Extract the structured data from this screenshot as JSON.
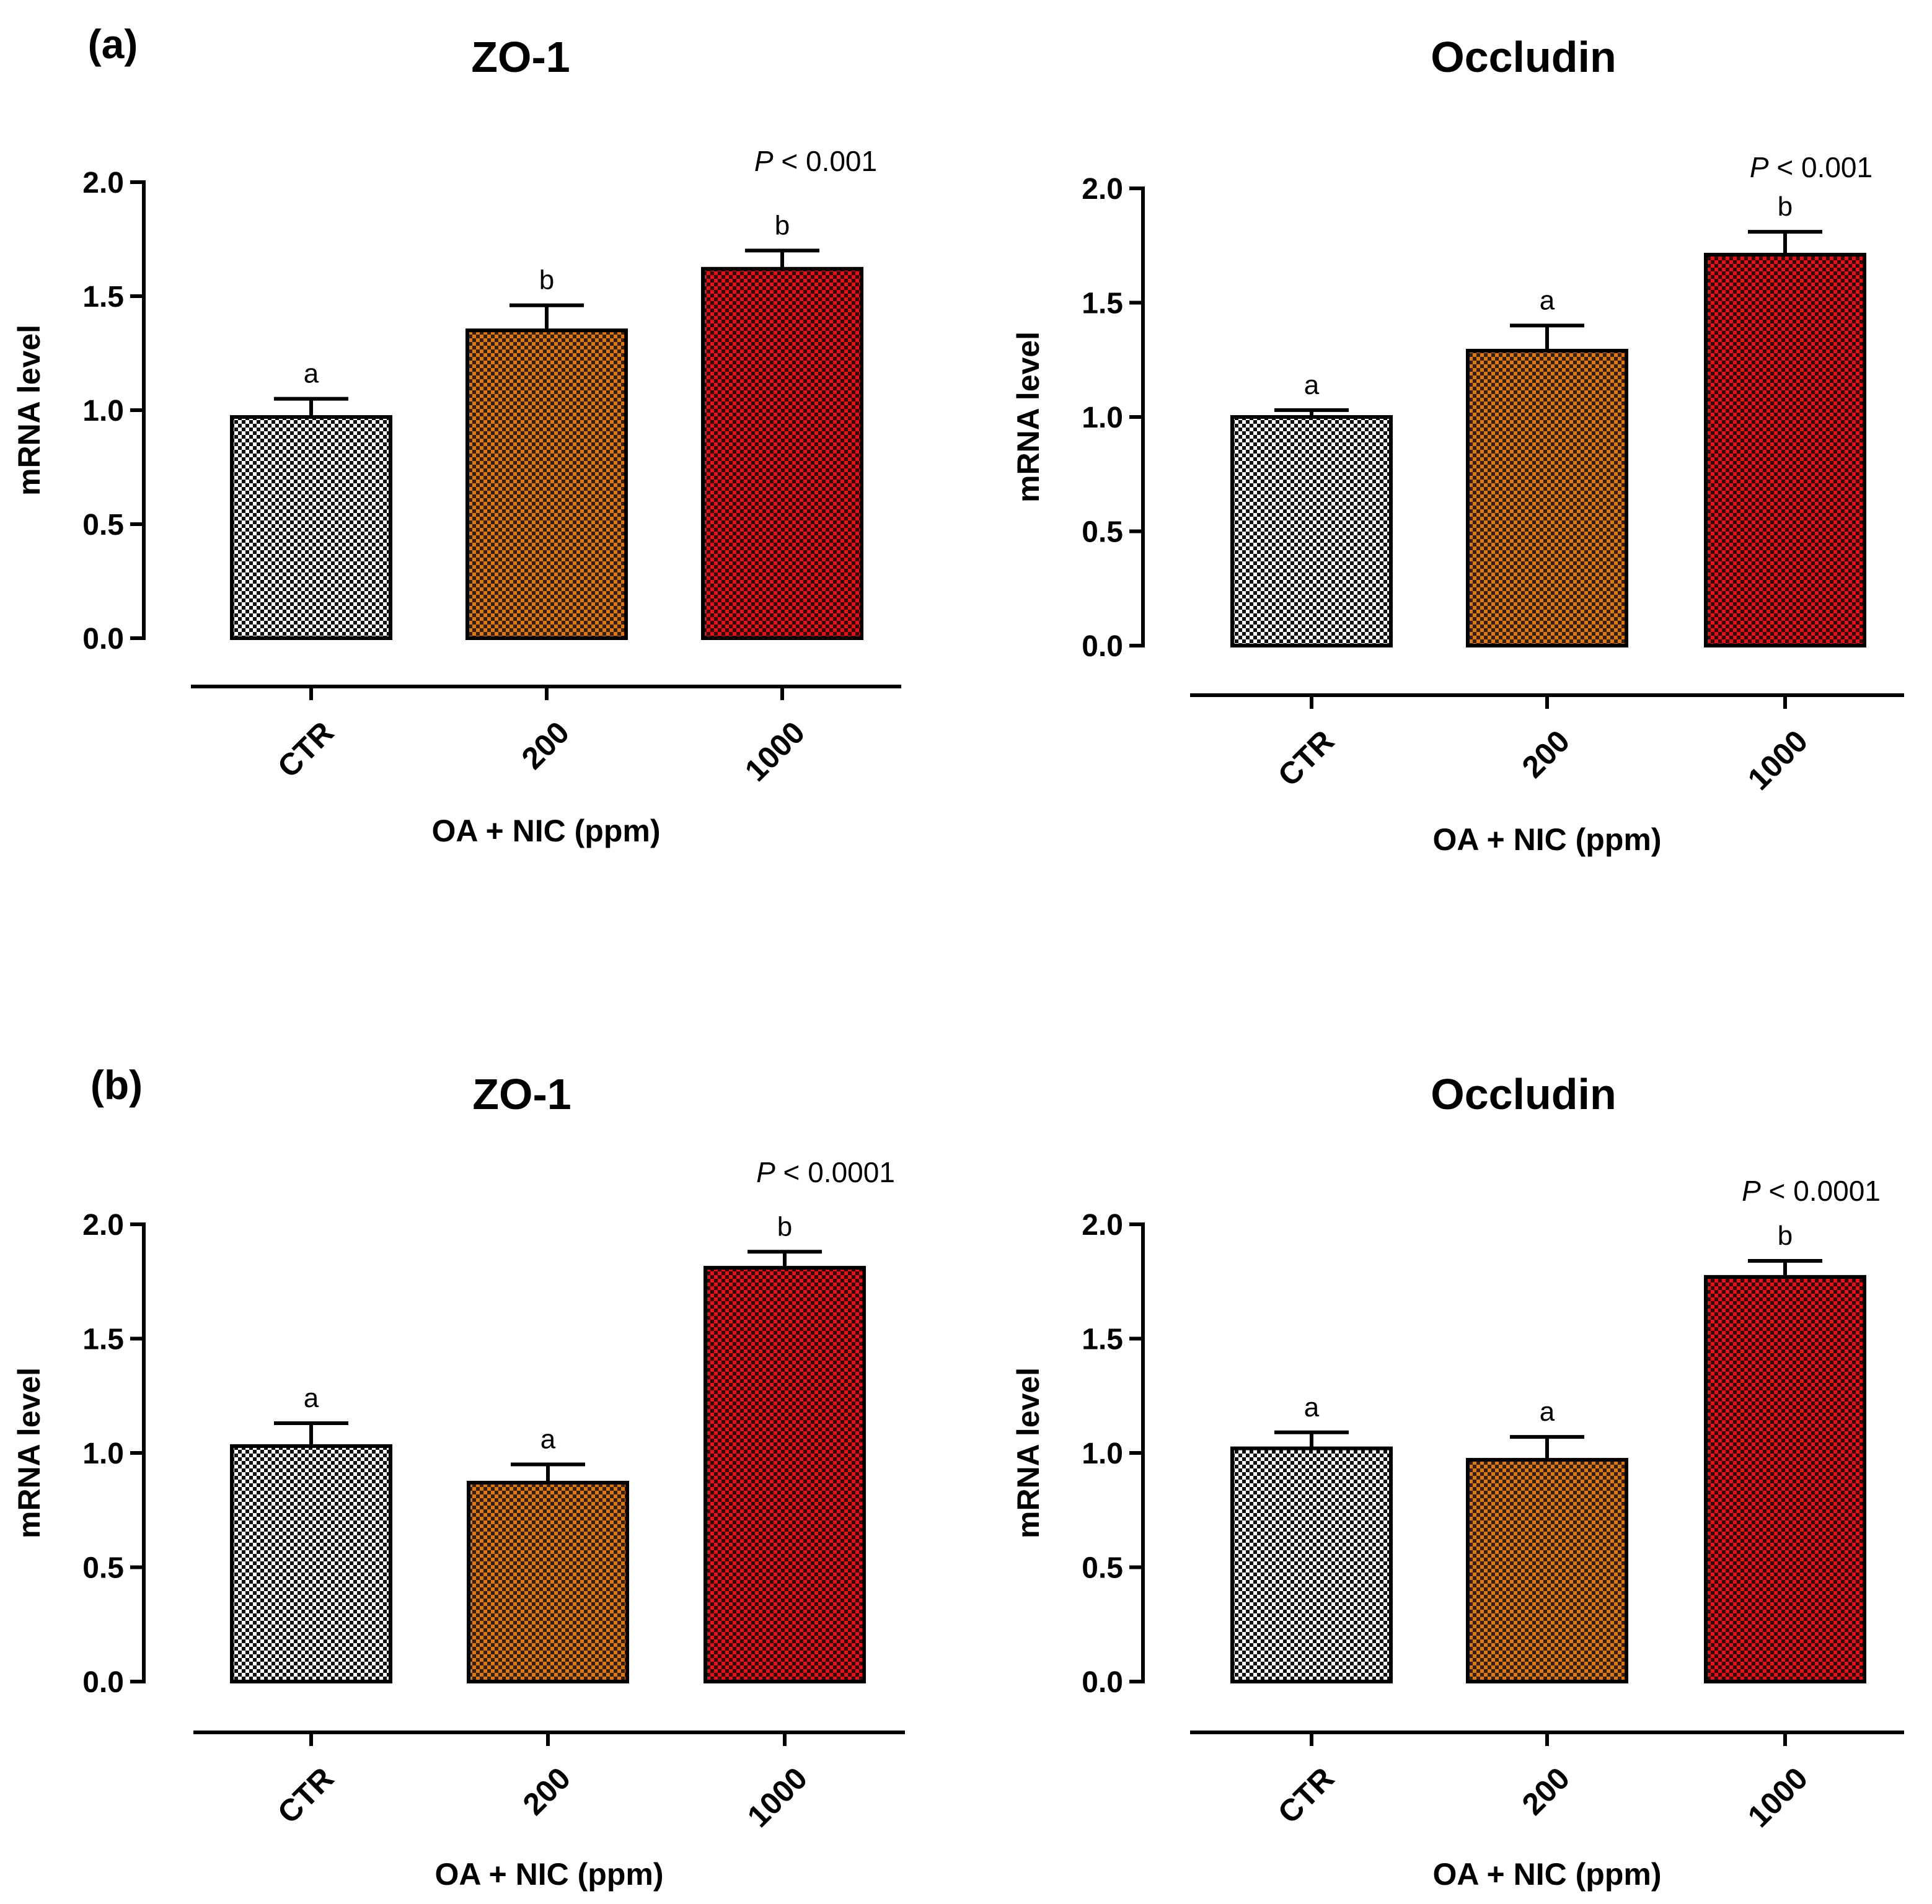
{
  "chart_data": [
    {
      "type": "bar",
      "panel_label": "(a)",
      "title": "ZO-1",
      "categories": [
        "CTR",
        "200",
        "1000"
      ],
      "values": [
        0.97,
        1.35,
        1.62
      ],
      "errors": [
        0.08,
        0.11,
        0.08
      ],
      "significance": [
        "a",
        "b",
        "b"
      ],
      "p_value": {
        "symbol": "P",
        "text": " < 0.001"
      },
      "xlabel": "OA + NIC (ppm)",
      "ylabel": "mRNA level",
      "ylim": [
        0,
        2.0
      ],
      "yticks": [
        "0.0",
        "0.5",
        "1.0",
        "1.5",
        "2.0"
      ]
    },
    {
      "type": "bar",
      "panel_label": "",
      "title": "Occludin",
      "categories": [
        "CTR",
        "200",
        "1000"
      ],
      "values": [
        1.0,
        1.29,
        1.71
      ],
      "errors": [
        0.03,
        0.11,
        0.1
      ],
      "significance": [
        "a",
        "a",
        "b"
      ],
      "p_value": {
        "symbol": "P",
        "text": " < 0.001"
      },
      "xlabel": "OA + NIC (ppm)",
      "ylabel": "mRNA level",
      "ylim": [
        0,
        2.0
      ],
      "yticks": [
        "0.0",
        "0.5",
        "1.0",
        "1.5",
        "2.0"
      ]
    },
    {
      "type": "bar",
      "panel_label": "(b)",
      "title": "ZO-1",
      "categories": [
        "CTR",
        "200",
        "1000"
      ],
      "values": [
        1.03,
        0.87,
        1.81
      ],
      "errors": [
        0.1,
        0.08,
        0.07
      ],
      "significance": [
        "a",
        "a",
        "b"
      ],
      "p_value": {
        "symbol": "P",
        "text": " < 0.0001"
      },
      "xlabel": "OA + NIC (ppm)",
      "ylabel": "mRNA level",
      "ylim": [
        0,
        2.0
      ],
      "yticks": [
        "0.0",
        "0.5",
        "1.0",
        "1.5",
        "2.0"
      ]
    },
    {
      "type": "bar",
      "panel_label": "",
      "title": "Occludin",
      "categories": [
        "CTR",
        "200",
        "1000"
      ],
      "values": [
        1.02,
        0.97,
        1.77
      ],
      "errors": [
        0.07,
        0.1,
        0.07
      ],
      "significance": [
        "a",
        "a",
        "b"
      ],
      "p_value": {
        "symbol": "P",
        "text": " < 0.0001"
      },
      "xlabel": "OA + NIC (ppm)",
      "ylabel": "mRNA level",
      "ylim": [
        0,
        2.0
      ],
      "yticks": [
        "0.0",
        "0.5",
        "1.0",
        "1.5",
        "2.0"
      ]
    }
  ],
  "colors": {
    "ctr_fill": "#ffffff",
    "ctr_dots": "#111111",
    "oa200_fill": "#d87a1c",
    "oa200_dots": "#3a1e05",
    "oa1000_fill": "#d8161b",
    "oa1000_dots": "#3a0306",
    "axis": "#000000"
  }
}
